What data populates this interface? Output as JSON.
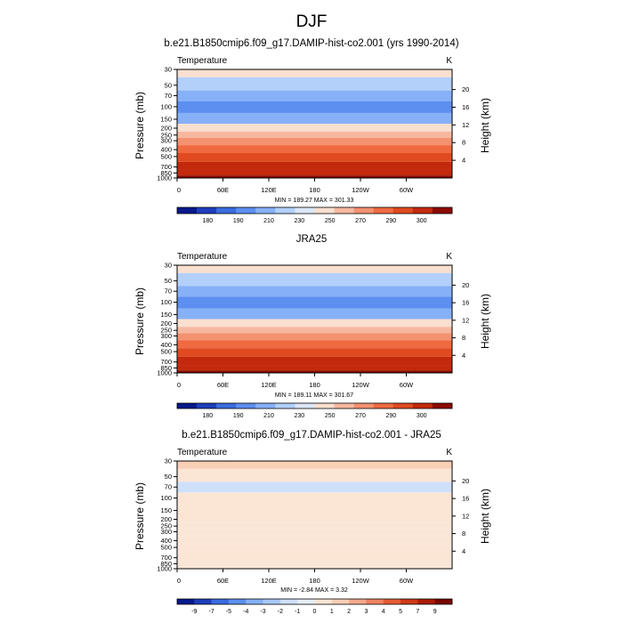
{
  "page_title": "DJF",
  "chart_data": [
    {
      "type": "heatmap",
      "title": "b.e21.B1850cmip6.f09_g17.DAMIP-hist-co2.001 (yrs 1990-2014)",
      "left_string": "Temperature",
      "right_string": "K",
      "ylabel": "Pressure (mb)",
      "ylabel_right": "Height (km)",
      "y_ticks": [
        "30",
        "50",
        "70",
        "100",
        "150",
        "200",
        "250",
        "300",
        "400",
        "500",
        "700",
        "850",
        "1000"
      ],
      "y_right_ticks": [
        "20",
        "16",
        "12",
        "8",
        "4"
      ],
      "x_ticks": [
        "0",
        "60E",
        "120E",
        "180",
        "120W",
        "60W"
      ],
      "stats": "MIN = 189.27  MAX = 301.33",
      "colorbar_labels": [
        "180",
        "190",
        "210",
        "230",
        "250",
        "270",
        "290",
        "300"
      ],
      "colors": [
        "#06198c",
        "#1d3ebc",
        "#3a6ce0",
        "#5d8ff0",
        "#86b1f8",
        "#b3d0fb",
        "#dbe6f7",
        "#f8dfcf",
        "#f7b8a0",
        "#f49171",
        "#f06a40",
        "#e04a20",
        "#c32a0b",
        "#8c0a00"
      ],
      "profile": [
        [
          30,
          7
        ],
        [
          50,
          5
        ],
        [
          70,
          4
        ],
        [
          100,
          3
        ],
        [
          150,
          4
        ],
        [
          200,
          7
        ],
        [
          250,
          8
        ],
        [
          300,
          9
        ],
        [
          400,
          10
        ],
        [
          500,
          11
        ],
        [
          700,
          12
        ],
        [
          850,
          12
        ],
        [
          1000,
          13
        ]
      ]
    },
    {
      "type": "heatmap",
      "title": "JRA25",
      "left_string": "Temperature",
      "right_string": "K",
      "ylabel": "Pressure (mb)",
      "ylabel_right": "Height (km)",
      "y_ticks": [
        "30",
        "50",
        "70",
        "100",
        "150",
        "200",
        "250",
        "300",
        "400",
        "500",
        "700",
        "850",
        "1000"
      ],
      "y_right_ticks": [
        "20",
        "16",
        "12",
        "8",
        "4"
      ],
      "x_ticks": [
        "0",
        "60E",
        "120E",
        "180",
        "120W",
        "60W"
      ],
      "stats": "MIN = 189.11  MAX = 301.67",
      "colorbar_labels": [
        "180",
        "190",
        "210",
        "230",
        "250",
        "270",
        "290",
        "300"
      ],
      "colors": [
        "#06198c",
        "#1d3ebc",
        "#3a6ce0",
        "#5d8ff0",
        "#86b1f8",
        "#b3d0fb",
        "#dbe6f7",
        "#f8dfcf",
        "#f7b8a0",
        "#f49171",
        "#f06a40",
        "#e04a20",
        "#c32a0b",
        "#8c0a00"
      ],
      "profile": [
        [
          30,
          7
        ],
        [
          50,
          5
        ],
        [
          70,
          4
        ],
        [
          100,
          3
        ],
        [
          150,
          4
        ],
        [
          200,
          7
        ],
        [
          250,
          8
        ],
        [
          300,
          9
        ],
        [
          400,
          10
        ],
        [
          500,
          11
        ],
        [
          700,
          12
        ],
        [
          850,
          12
        ],
        [
          1000,
          13
        ]
      ]
    },
    {
      "type": "heatmap",
      "title": "b.e21.B1850cmip6.f09_g17.DAMIP-hist-co2.001 - JRA25",
      "left_string": "Temperature",
      "right_string": "K",
      "ylabel": "Pressure (mb)",
      "ylabel_right": "Height (km)",
      "y_ticks": [
        "30",
        "50",
        "70",
        "100",
        "150",
        "200",
        "250",
        "300",
        "400",
        "500",
        "700",
        "850",
        "1000"
      ],
      "y_right_ticks": [
        "20",
        "16",
        "12",
        "8",
        "4"
      ],
      "x_ticks": [
        "0",
        "60E",
        "120E",
        "180",
        "120W",
        "60W"
      ],
      "stats": "MIN = -2.84  MAX =  3.32",
      "colorbar_labels": [
        "-9",
        "-7",
        "-5",
        "-4",
        "-3",
        "-2",
        "-1",
        "0",
        "1",
        "2",
        "3",
        "4",
        "5",
        "7",
        "9"
      ],
      "colors": [
        "#06198c",
        "#1d3ebc",
        "#3a6ce0",
        "#5d8ff0",
        "#86b1f8",
        "#a9c8fa",
        "#cfe0fb",
        "#e6eef8",
        "#fbe6d6",
        "#f9cfb6",
        "#f4aa8e",
        "#f08362",
        "#e55c33",
        "#cf3a14",
        "#ab1c04",
        "#7a0500"
      ],
      "profile": [
        [
          30,
          9
        ],
        [
          50,
          8
        ],
        [
          70,
          6
        ],
        [
          100,
          8
        ],
        [
          150,
          8
        ],
        [
          200,
          8
        ],
        [
          250,
          8
        ],
        [
          300,
          8
        ],
        [
          400,
          8
        ],
        [
          500,
          8
        ],
        [
          700,
          8
        ],
        [
          850,
          8
        ],
        [
          1000,
          8
        ]
      ]
    }
  ]
}
